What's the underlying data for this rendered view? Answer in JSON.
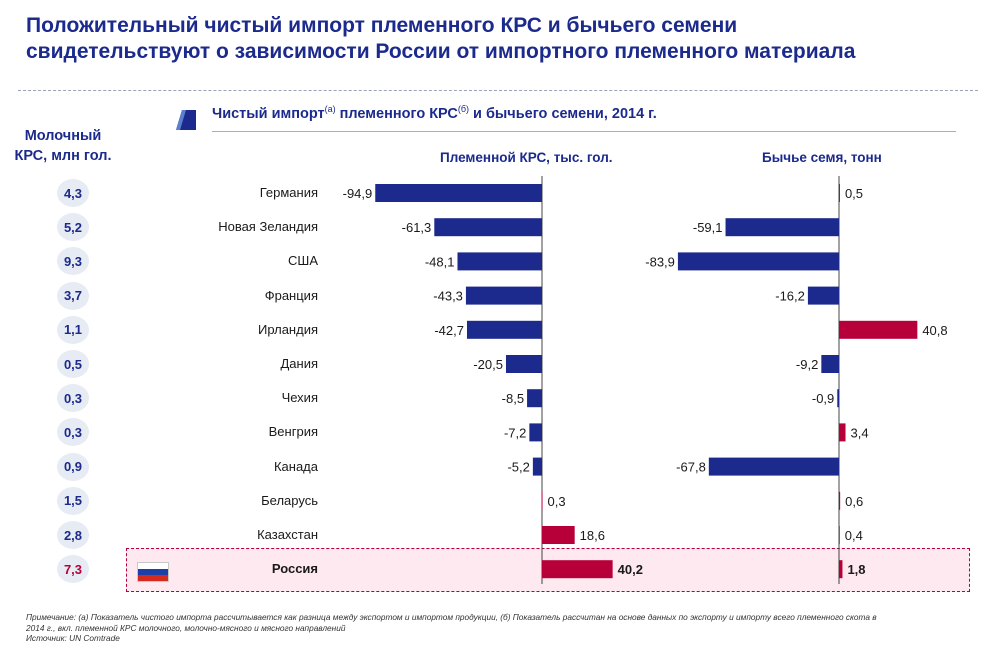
{
  "title_line1": "Положительный чистый импорт племенного КРС и бычьего семени",
  "title_line2": "свидетельствуют о зависимости России от импортного племенного материала",
  "chart_title": {
    "part1": "Чистый импорт",
    "sup_a": "(а)",
    "part2": " племенного КРС",
    "sup_b": "(б)",
    "part3": " и бычьего семени, 2014 г."
  },
  "side_header_line1": "Молочный",
  "side_header_line2": "КРС, млн гол.",
  "colors": {
    "negative": "#1b2a8c",
    "positive": "#b7003a",
    "title": "#1b2a8c"
  },
  "highlight_flag_icon": "russia-flag-icon",
  "chart_data": {
    "type": "bar",
    "orientation": "horizontal",
    "categories": [
      "Германия",
      "Новая Зеландия",
      "США",
      "Франция",
      "Ирландия",
      "Дания",
      "Чехия",
      "Венгрия",
      "Канада",
      "Беларусь",
      "Казахстан",
      "Россия"
    ],
    "dairy_cattle_mln": [
      "4,3",
      "5,2",
      "9,3",
      "3,7",
      "1,1",
      "0,5",
      "0,3",
      "0,3",
      "0,9",
      "1,5",
      "2,8",
      "7,3"
    ],
    "series": [
      {
        "name": "Племенной КРС, тыс. гол.",
        "values": [
          -94.9,
          -61.3,
          -48.1,
          -43.3,
          -42.7,
          -20.5,
          -8.5,
          -7.2,
          -5.2,
          0.3,
          18.6,
          40.2
        ],
        "labels": [
          "-94,9",
          "-61,3",
          "-48,1",
          "-43,3",
          "-42,7",
          "-20,5",
          "-8,5",
          "-7,2",
          "-5,2",
          "0,3",
          "18,6",
          "40,2"
        ]
      },
      {
        "name": "Бычье семя, тонн",
        "values": [
          0.5,
          -59.1,
          -83.9,
          -16.2,
          40.8,
          -9.2,
          -0.9,
          3.4,
          -67.8,
          0.6,
          0.4,
          1.8
        ],
        "labels": [
          "0,5",
          "-59,1",
          "-83,9",
          "-16,2",
          "40,8",
          "-9,2",
          "-0,9",
          "3,4",
          "-67,8",
          "0,6",
          "0,4",
          "1,8"
        ]
      }
    ],
    "highlight_category": "Россия"
  },
  "notes_line1": "Примечание: (а) Показатель чистого импорта рассчитывается как разница между экспортом и импортом продукции, (б) Показатель рассчитан на основе данных по экспорту и импорту всего племенного скота в",
  "notes_line2": "2014 г., вкл. племенной КРС молочного, молочно-мясного и мясного направлений",
  "notes_line3": "Источник: UN Comtrade"
}
